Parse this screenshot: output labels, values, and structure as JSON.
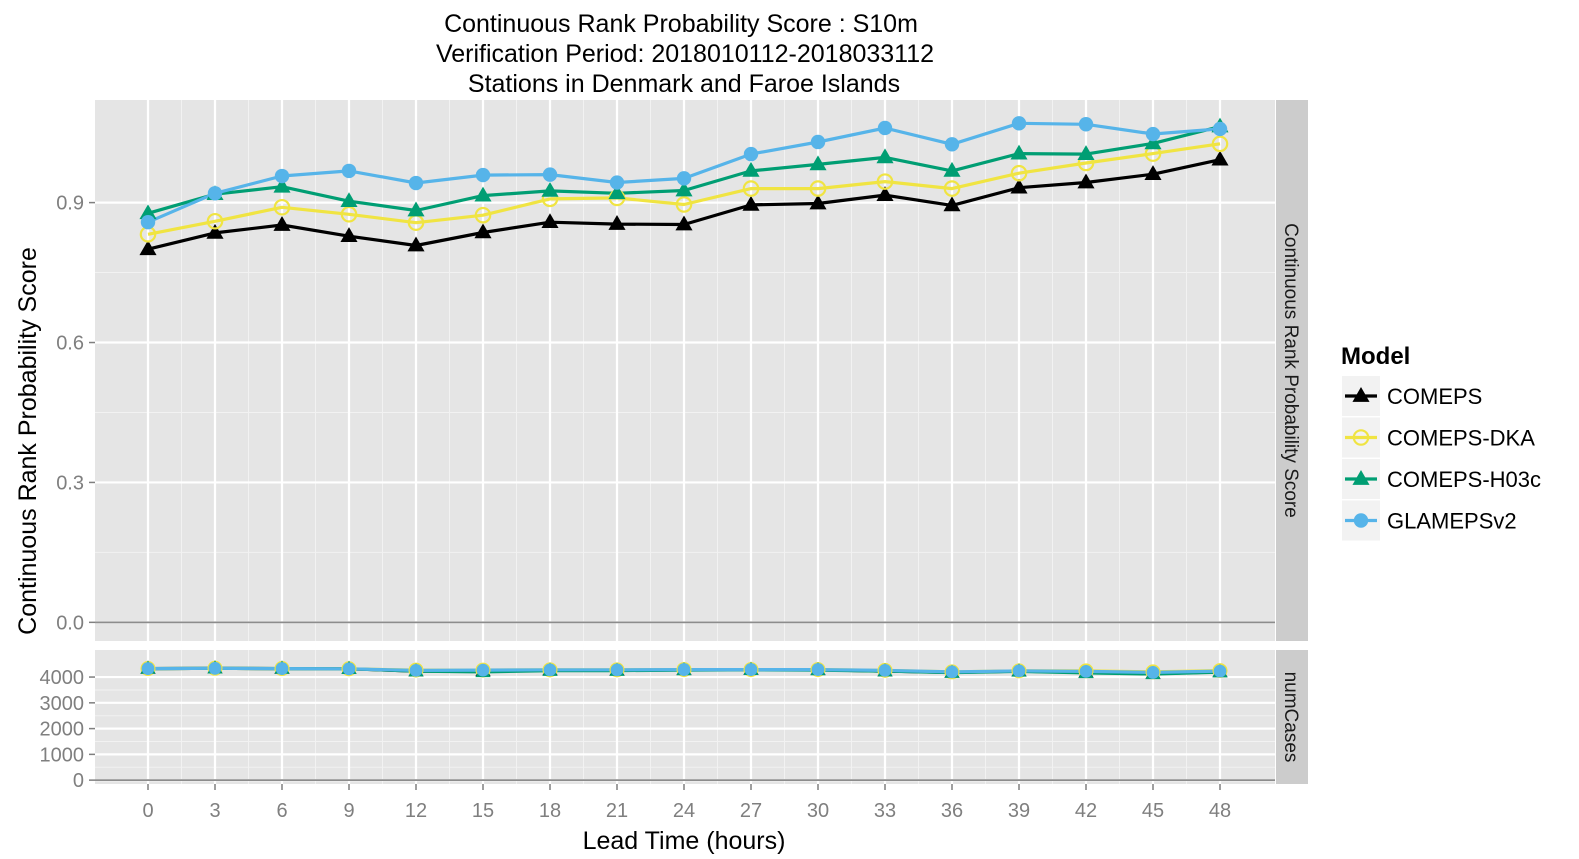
{
  "chart_data": {
    "type": "line",
    "title": [
      "Continuous Rank Probability Score : S10m",
      "Verification Period: 2018010112-2018033112",
      "Stations in Denmark and Faroe Islands"
    ],
    "xlabel": "Lead Time (hours)",
    "ylabel": "Continuous Rank Probability Score",
    "x": [
      0,
      3,
      6,
      9,
      12,
      15,
      18,
      21,
      24,
      27,
      30,
      33,
      36,
      39,
      42,
      45,
      48
    ],
    "legend": {
      "title": "Model",
      "position": "right"
    },
    "panels": [
      {
        "strip": "Continuous Rank Probability Score",
        "ylim": [
          -0.04,
          1.12
        ],
        "yticks": [
          0.0,
          0.3,
          0.6,
          0.9
        ],
        "ytick_labels": [
          "0.0",
          "0.3",
          "0.6",
          "0.9"
        ],
        "hline": 0,
        "series": [
          {
            "name": "COMEPS",
            "color": "#000000",
            "marker": "triangle-filled",
            "values": [
              0.8,
              0.835,
              0.852,
              0.828,
              0.808,
              0.836,
              0.858,
              0.854,
              0.853,
              0.895,
              0.898,
              0.916,
              0.894,
              0.932,
              0.943,
              0.961,
              0.992
            ]
          },
          {
            "name": "COMEPS-DKA",
            "color": "#f0e442",
            "marker": "circle-open",
            "values": [
              0.832,
              0.86,
              0.89,
              0.875,
              0.857,
              0.873,
              0.908,
              0.91,
              0.896,
              0.93,
              0.93,
              0.945,
              0.93,
              0.963,
              0.985,
              1.005,
              1.026
            ]
          },
          {
            "name": "COMEPS-H03c",
            "color": "#009e73",
            "marker": "triangle-filled",
            "values": [
              0.877,
              0.918,
              0.934,
              0.903,
              0.883,
              0.915,
              0.925,
              0.92,
              0.926,
              0.968,
              0.982,
              0.997,
              0.968,
              1.005,
              1.004,
              1.027,
              1.063
            ]
          },
          {
            "name": "GLAMEPSv2",
            "color": "#56b4e9",
            "marker": "circle-filled",
            "values": [
              0.858,
              0.92,
              0.957,
              0.968,
              0.942,
              0.959,
              0.96,
              0.943,
              0.952,
              1.004,
              1.03,
              1.06,
              1.025,
              1.07,
              1.068,
              1.047,
              1.058
            ]
          }
        ]
      },
      {
        "strip": "numCases",
        "ylim": [
          -150,
          5050
        ],
        "yticks": [
          0,
          1000,
          2000,
          3000,
          4000
        ],
        "ytick_labels": [
          "0",
          "1000",
          "2000",
          "3000",
          "4000"
        ],
        "hline": 0,
        "series": [
          {
            "name": "COMEPS",
            "color": "#000000",
            "marker": "triangle-filled",
            "values": [
              4330,
              4340,
              4330,
              4320,
              4230,
              4240,
              4270,
              4260,
              4280,
              4290,
              4280,
              4230,
              4180,
              4230,
              4180,
              4130,
              4200
            ]
          },
          {
            "name": "COMEPS-DKA",
            "color": "#f0e442",
            "marker": "circle-open",
            "values": [
              4330,
              4340,
              4330,
              4320,
              4270,
              4270,
              4280,
              4280,
              4290,
              4290,
              4290,
              4260,
              4200,
              4240,
              4240,
              4200,
              4250
            ]
          },
          {
            "name": "COMEPS-H03c",
            "color": "#009e73",
            "marker": "triangle-filled",
            "values": [
              4330,
              4340,
              4330,
              4320,
              4230,
              4200,
              4250,
              4250,
              4270,
              4280,
              4270,
              4230,
              4170,
              4220,
              4160,
              4120,
              4190
            ]
          },
          {
            "name": "GLAMEPSv2",
            "color": "#56b4e9",
            "marker": "circle-filled",
            "values": [
              4330,
              4340,
              4330,
              4320,
              4260,
              4270,
              4280,
              4280,
              4290,
              4290,
              4290,
              4260,
              4200,
              4240,
              4220,
              4180,
              4230
            ]
          }
        ]
      }
    ]
  }
}
